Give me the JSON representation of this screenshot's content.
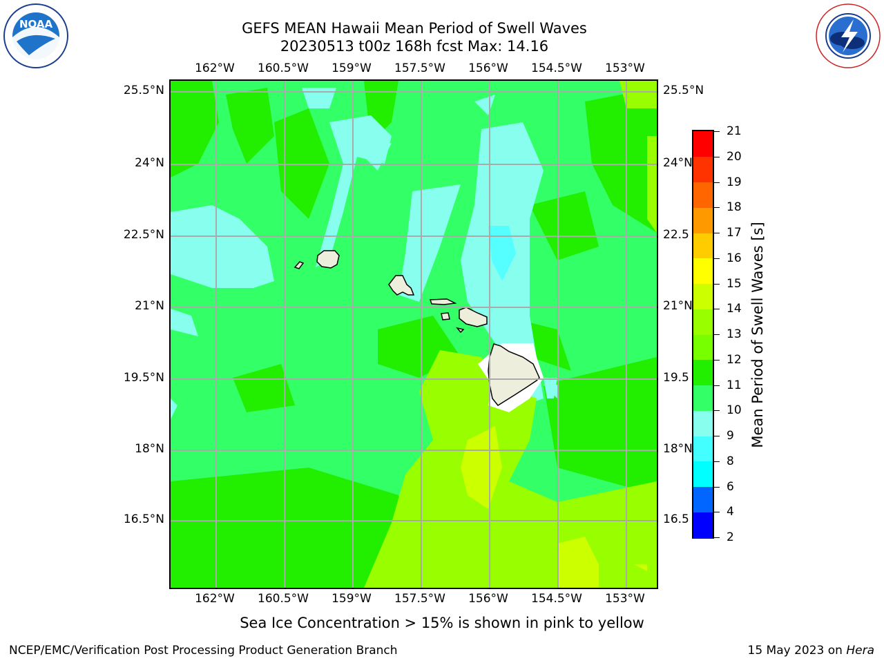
{
  "title_line1": "GEFS MEAN Hawaii Mean Period of Swell Waves",
  "title_line2": "20230513 t00z 168h fcst   Max: 14.16",
  "lon_labels": [
    "162°W",
    "160.5°W",
    "159°W",
    "157.5°W",
    "156°W",
    "154.5°W",
    "153°W"
  ],
  "lat_labels_left": [
    "25.5°N",
    "24°N",
    "22.5°N",
    "21°N",
    "19.5°N",
    "18°N",
    "16.5°N"
  ],
  "lat_labels_right": [
    "25.5°N",
    "24°N",
    "22.5",
    "21°N",
    "19.5",
    "18°N",
    "16.5"
  ],
  "colorbar": {
    "label": "Mean Period of Swell Waves [s]",
    "ticks": [
      "2",
      "4",
      "6",
      "8",
      "9",
      "10",
      "11",
      "12",
      "13",
      "14",
      "15",
      "16",
      "17",
      "18",
      "19",
      "20",
      "21"
    ],
    "colors": [
      "#0000ff",
      "#0066ff",
      "#00ffff",
      "#44ffff",
      "#88ffee",
      "#33ff66",
      "#22ee00",
      "#77ff00",
      "#99ff00",
      "#ccff00",
      "#ffff00",
      "#ffcc00",
      "#ff9900",
      "#ff6600",
      "#ff3300",
      "#ff0000"
    ]
  },
  "caption": "Sea Ice Concentration > 15% is shown in pink to yellow",
  "footer_left": "NCEP/EMC/Verification Post Processing Product Generation Branch",
  "footer_date": "15 May 2023 on",
  "footer_machine": "Hera",
  "logos": {
    "left": "NOAA",
    "right": "NATIONAL WEATHER SERVICE"
  },
  "colors": {
    "land": "#eeeedd",
    "grid": "#aaaaaa",
    "field_main": "#33ff66",
    "field_green": "#22ee00",
    "field_light": "#88ffee",
    "field_yellowgreen": "#99ff00"
  }
}
